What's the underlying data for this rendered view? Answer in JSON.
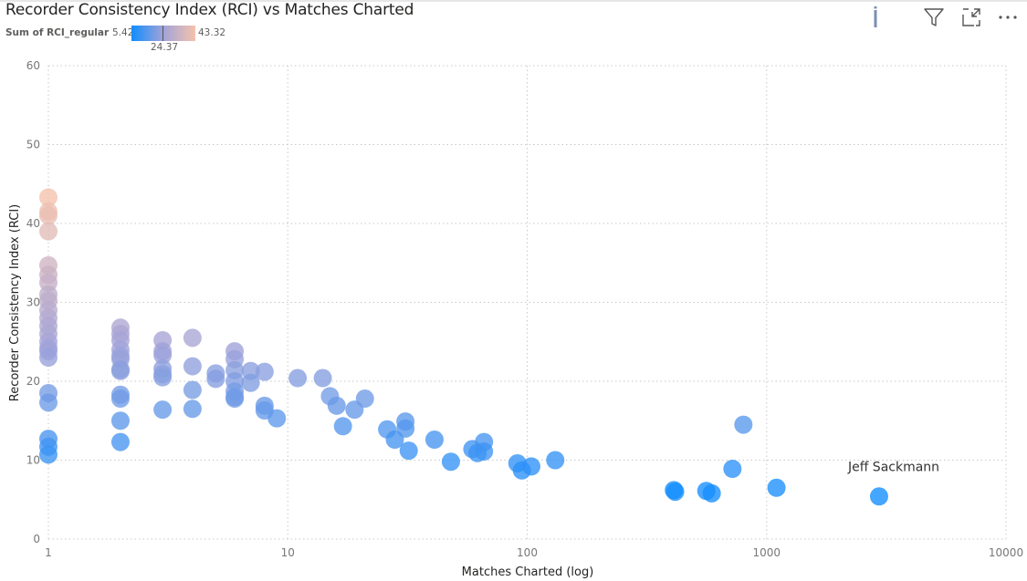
{
  "visual": {
    "title": "Recorder Consistency Index (RCI) vs Matches Charted",
    "header_icons": [
      {
        "name": "info-icon",
        "glyph": "i"
      },
      {
        "name": "filter-icon"
      },
      {
        "name": "focus-mode-icon"
      },
      {
        "name": "more-options-icon",
        "glyph": "..."
      }
    ]
  },
  "legend": {
    "label": "Sum of RCI_regular",
    "min": "5.42",
    "mid": "24.37",
    "max": "43.32",
    "colors": {
      "min": "#118dff",
      "mid": "#a3a3d8",
      "max": "#f4c2ad"
    }
  },
  "chart_data": {
    "type": "scatter",
    "title": "Recorder Consistency Index (RCI) vs Matches Charted",
    "xlabel": "Matches Charted (log)",
    "ylabel": "Recorder Consistency Index (RCI)",
    "x_scale": "log",
    "xlim": [
      1,
      10000
    ],
    "ylim": [
      0,
      60
    ],
    "x_ticks": [
      "1",
      "10",
      "100",
      "1000",
      "10000"
    ],
    "y_ticks": [
      "0",
      "10",
      "20",
      "30",
      "40",
      "50",
      "60"
    ],
    "grid": true,
    "color_by": "Sum of RCI_regular",
    "color_range": [
      5.42,
      24.37,
      43.32
    ],
    "annotations": [
      {
        "text": "Jeff Sackmann",
        "x": 2900,
        "y": 5.4
      }
    ],
    "points": [
      {
        "x": 1,
        "y": 43.3
      },
      {
        "x": 1,
        "y": 41.5
      },
      {
        "x": 1,
        "y": 41.0
      },
      {
        "x": 1,
        "y": 39.0
      },
      {
        "x": 1,
        "y": 34.7
      },
      {
        "x": 1,
        "y": 33.5
      },
      {
        "x": 1,
        "y": 32.5
      },
      {
        "x": 1,
        "y": 31.0
      },
      {
        "x": 1,
        "y": 30.2
      },
      {
        "x": 1,
        "y": 29.0
      },
      {
        "x": 1,
        "y": 28.0
      },
      {
        "x": 1,
        "y": 27.0
      },
      {
        "x": 1,
        "y": 26.0
      },
      {
        "x": 1,
        "y": 25.0
      },
      {
        "x": 1,
        "y": 24.2
      },
      {
        "x": 1,
        "y": 23.8
      },
      {
        "x": 1,
        "y": 23.0
      },
      {
        "x": 1,
        "y": 18.5
      },
      {
        "x": 1,
        "y": 17.3
      },
      {
        "x": 1,
        "y": 12.7
      },
      {
        "x": 1,
        "y": 11.7
      },
      {
        "x": 1,
        "y": 10.7
      },
      {
        "x": 2,
        "y": 26.8
      },
      {
        "x": 2,
        "y": 26.0
      },
      {
        "x": 2,
        "y": 25.2
      },
      {
        "x": 2,
        "y": 24.0
      },
      {
        "x": 2,
        "y": 23.2
      },
      {
        "x": 2,
        "y": 22.8
      },
      {
        "x": 2,
        "y": 21.5
      },
      {
        "x": 2,
        "y": 21.3
      },
      {
        "x": 2,
        "y": 18.3
      },
      {
        "x": 2,
        "y": 17.8
      },
      {
        "x": 2,
        "y": 15.0
      },
      {
        "x": 2,
        "y": 12.3
      },
      {
        "x": 3,
        "y": 25.2
      },
      {
        "x": 3,
        "y": 23.8
      },
      {
        "x": 3,
        "y": 23.3
      },
      {
        "x": 3,
        "y": 21.6
      },
      {
        "x": 3,
        "y": 20.9
      },
      {
        "x": 3,
        "y": 20.5
      },
      {
        "x": 3,
        "y": 16.4
      },
      {
        "x": 4,
        "y": 25.5
      },
      {
        "x": 4,
        "y": 21.9
      },
      {
        "x": 4,
        "y": 18.9
      },
      {
        "x": 4,
        "y": 16.5
      },
      {
        "x": 5,
        "y": 21.0
      },
      {
        "x": 5,
        "y": 20.3
      },
      {
        "x": 6,
        "y": 23.8
      },
      {
        "x": 6,
        "y": 22.8
      },
      {
        "x": 6,
        "y": 21.4
      },
      {
        "x": 6,
        "y": 20.0
      },
      {
        "x": 6,
        "y": 18.7
      },
      {
        "x": 6,
        "y": 18.0
      },
      {
        "x": 6,
        "y": 17.8
      },
      {
        "x": 7,
        "y": 21.3
      },
      {
        "x": 7,
        "y": 19.8
      },
      {
        "x": 8,
        "y": 21.2
      },
      {
        "x": 8,
        "y": 16.9
      },
      {
        "x": 8,
        "y": 16.3
      },
      {
        "x": 9,
        "y": 15.3
      },
      {
        "x": 11,
        "y": 20.4
      },
      {
        "x": 14,
        "y": 20.4
      },
      {
        "x": 15,
        "y": 18.1
      },
      {
        "x": 16,
        "y": 16.9
      },
      {
        "x": 17,
        "y": 14.3
      },
      {
        "x": 19,
        "y": 16.4
      },
      {
        "x": 21,
        "y": 17.8
      },
      {
        "x": 26,
        "y": 13.9
      },
      {
        "x": 28,
        "y": 12.6
      },
      {
        "x": 31,
        "y": 14.9
      },
      {
        "x": 31,
        "y": 14.0
      },
      {
        "x": 32,
        "y": 11.2
      },
      {
        "x": 41,
        "y": 12.6
      },
      {
        "x": 48,
        "y": 9.8
      },
      {
        "x": 59,
        "y": 11.4
      },
      {
        "x": 62,
        "y": 10.9
      },
      {
        "x": 66,
        "y": 12.3
      },
      {
        "x": 66,
        "y": 11.1
      },
      {
        "x": 91,
        "y": 9.6
      },
      {
        "x": 95,
        "y": 8.7
      },
      {
        "x": 104,
        "y": 9.2
      },
      {
        "x": 131,
        "y": 10.0
      },
      {
        "x": 410,
        "y": 6.2
      },
      {
        "x": 415,
        "y": 6.0
      },
      {
        "x": 560,
        "y": 6.1
      },
      {
        "x": 590,
        "y": 5.8
      },
      {
        "x": 720,
        "y": 8.9
      },
      {
        "x": 800,
        "y": 14.5
      },
      {
        "x": 1100,
        "y": 6.5
      },
      {
        "x": 2950,
        "y": 5.4
      }
    ]
  }
}
